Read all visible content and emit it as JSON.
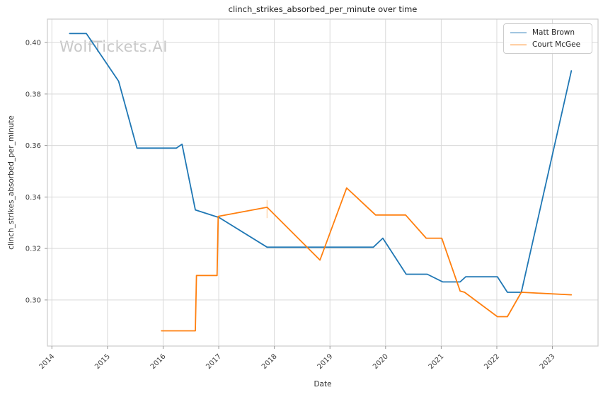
{
  "title": "clinch_strikes_absorbed_per_minute over time",
  "watermark": "WolfTickets.AI",
  "legend": {
    "items": [
      {
        "label": "Matt Brown",
        "color": "#1f77b4"
      },
      {
        "label": "Court McGee",
        "color": "#ff7f0e"
      }
    ]
  },
  "colors": {
    "blue_series": "#1f77b4",
    "orange_series": "#ff7f0e",
    "grid": "#d9d9d9",
    "spine": "#cccccc",
    "tick": "#999999",
    "tick_text": "#3d3d3d",
    "title_text": "#1a1a1a",
    "watermark_text": "#c8c8c8",
    "artifact_tick": "#ffd9b3"
  },
  "chart_data": {
    "type": "line",
    "title": "clinch_strikes_absorbed_per_minute over time",
    "xlabel": "Date",
    "ylabel": "clinch_strikes_absorbed_per_minute",
    "grid": true,
    "legend_position": "upper right",
    "xlim": [
      2013.92,
      2023.82
    ],
    "ylim": [
      0.2821,
      0.4091
    ],
    "x_ticks": [
      2014,
      2015,
      2016,
      2017,
      2018,
      2019,
      2020,
      2021,
      2022,
      2023
    ],
    "x_tick_labels": [
      "2014",
      "2015",
      "2016",
      "2017",
      "2018",
      "2019",
      "2020",
      "2021",
      "2022",
      "2023"
    ],
    "y_ticks": [
      0.3,
      0.32,
      0.34,
      0.36,
      0.38,
      0.4
    ],
    "y_tick_labels": [
      "0.30",
      "0.32",
      "0.34",
      "0.36",
      "0.38",
      "0.40"
    ],
    "series": [
      {
        "name": "Matt Brown",
        "color": "#1f77b4",
        "points": [
          [
            2014.32,
            0.4035
          ],
          [
            2014.62,
            0.4035
          ],
          [
            2015.2,
            0.385
          ],
          [
            2015.53,
            0.359
          ],
          [
            2016.24,
            0.359
          ],
          [
            2016.34,
            0.3605
          ],
          [
            2016.58,
            0.335
          ],
          [
            2017.01,
            0.332
          ],
          [
            2017.87,
            0.3205
          ],
          [
            2019.78,
            0.3205
          ],
          [
            2019.95,
            0.324
          ],
          [
            2020.37,
            0.31
          ],
          [
            2020.75,
            0.31
          ],
          [
            2021.03,
            0.307
          ],
          [
            2021.34,
            0.307
          ],
          [
            2021.44,
            0.309
          ],
          [
            2022.01,
            0.309
          ],
          [
            2022.19,
            0.303
          ],
          [
            2022.44,
            0.303
          ],
          [
            2023.34,
            0.389
          ]
        ]
      },
      {
        "name": "Court McGee",
        "color": "#ff7f0e",
        "points": [
          [
            2015.97,
            0.288
          ],
          [
            2016.58,
            0.288
          ],
          [
            2016.6,
            0.3095
          ],
          [
            2016.97,
            0.3095
          ],
          [
            2016.99,
            0.3325
          ],
          [
            2017.87,
            0.336
          ],
          [
            2018.82,
            0.3155
          ],
          [
            2019.3,
            0.3435
          ],
          [
            2019.82,
            0.333
          ],
          [
            2020.36,
            0.333
          ],
          [
            2020.73,
            0.324
          ],
          [
            2021.01,
            0.324
          ],
          [
            2021.34,
            0.3035
          ],
          [
            2021.42,
            0.303
          ],
          [
            2022.01,
            0.2935
          ],
          [
            2022.19,
            0.2935
          ],
          [
            2022.44,
            0.303
          ],
          [
            2023.34,
            0.302
          ]
        ],
        "artifact_tick": {
          "x": 2017.87,
          "y1": 0.3388,
          "y2": 0.3318
        }
      }
    ]
  }
}
